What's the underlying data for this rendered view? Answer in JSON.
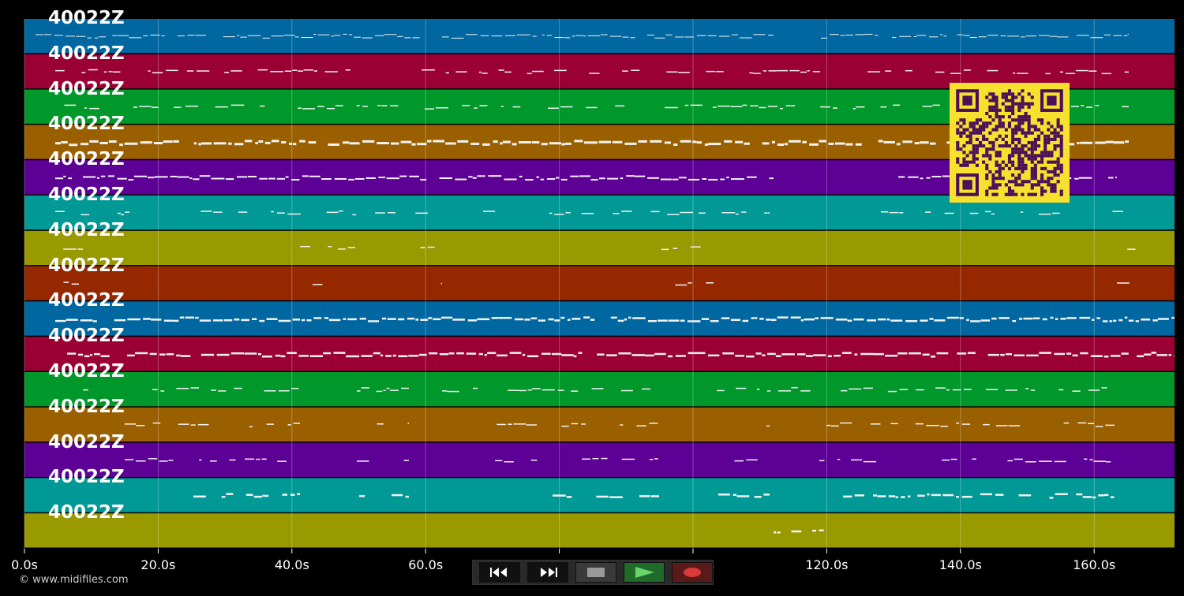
{
  "track_labels": [
    "40022Z",
    "40022Z",
    "40022Z",
    "40022Z",
    "40022Z",
    "40022Z",
    "40022Z",
    "40022Z",
    "40022Z",
    "40022Z",
    "40022Z",
    "40022Z",
    "40022Z",
    "40022Z",
    "40022Z"
  ],
  "track_colors": [
    "#0067a0",
    "#9a0033",
    "#00982a",
    "#9a6000",
    "#5c0096",
    "#009996",
    "#999900",
    "#962800",
    "#0067a0",
    "#9a0033",
    "#00982a",
    "#9a6000",
    "#5c0096",
    "#009996",
    "#999900"
  ],
  "time_ticks": [
    "0.0s",
    "20.0s",
    "40.0s",
    "60.0s",
    "80.0s",
    "100.0s",
    "120.0s",
    "140.0s",
    "160.0s"
  ],
  "copyright": "© www.midifiles.com",
  "controls": [
    {
      "name": "rewind-button",
      "icon": "rewind-icon"
    },
    {
      "name": "fast-forward-button",
      "icon": "fast-forward-icon"
    },
    {
      "name": "stop-button",
      "icon": "stop-icon"
    },
    {
      "name": "play-button",
      "icon": "play-icon"
    },
    {
      "name": "record-button",
      "icon": "record-icon"
    }
  ],
  "qr_code": {
    "colors": {
      "fg": "#4b0f5a",
      "bg": "#f7e12e"
    }
  }
}
